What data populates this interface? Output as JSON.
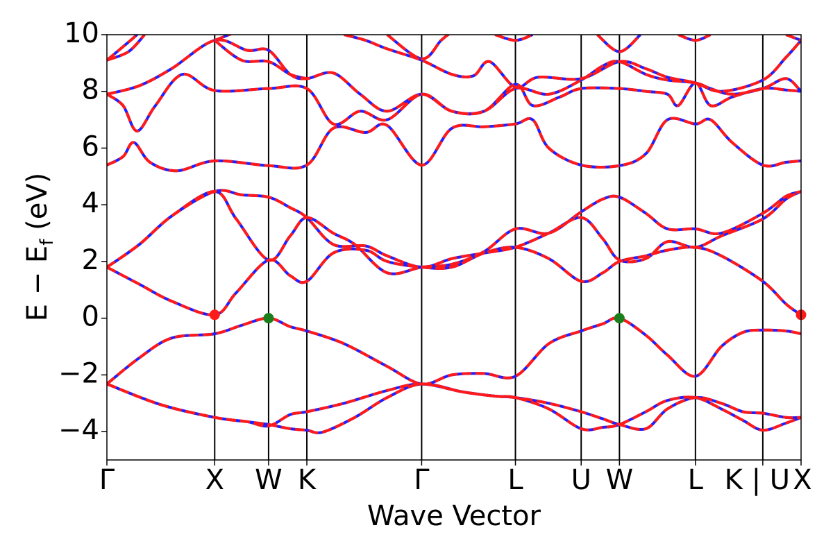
{
  "chart_data": {
    "type": "line",
    "title": "",
    "xlabel": "Wave Vector",
    "ylabel_main": "E − E",
    "ylabel_sub": "f",
    "ylabel_unit": " (eV)",
    "ylim": [
      -5,
      10
    ],
    "yticks": [
      -4,
      -2,
      0,
      2,
      4,
      6,
      8,
      10
    ],
    "ytick_labels": [
      "−4",
      "−2",
      "0",
      "2",
      "4",
      "6",
      "8",
      "10"
    ],
    "xlim": [
      0,
      6.44
    ],
    "kpoints": [
      {
        "label": "Γ",
        "x": 0.0
      },
      {
        "label": "X",
        "x": 1.0
      },
      {
        "label": "W",
        "x": 1.5
      },
      {
        "label": "K",
        "x": 1.855
      },
      {
        "label": "Γ",
        "x": 2.92
      },
      {
        "label": "L",
        "x": 3.79
      },
      {
        "label": "U",
        "x": 4.4
      },
      {
        "label": "W",
        "x": 4.755
      },
      {
        "label": "L",
        "x": 5.46
      },
      {
        "label": "K | U",
        "x": 6.085
      },
      {
        "label": "X",
        "x": 6.44
      }
    ],
    "colors": {
      "primary": "#1f1fff",
      "overlay": "#ff1a1a",
      "vbm": "#1a7f1a",
      "cbm": "#ff1a1a"
    },
    "series": [
      {
        "color": "blue",
        "style": "solid",
        "bands": "B"
      },
      {
        "color": "red",
        "style": "dashed",
        "bands": "B"
      }
    ],
    "markers": [
      {
        "kind": "cbm",
        "x": 1.0,
        "y": 0.12
      },
      {
        "kind": "cbm",
        "x": 6.44,
        "y": 0.12
      },
      {
        "kind": "vbm",
        "x": 1.5,
        "y": 0.0
      },
      {
        "kind": "vbm",
        "x": 4.755,
        "y": 0.0
      }
    ],
    "bands": [
      [
        [
          0,
          -2.32
        ],
        [
          0.5,
          -3.05
        ],
        [
          1.0,
          -3.5
        ],
        [
          1.3,
          -3.65
        ],
        [
          1.5,
          -3.75
        ],
        [
          1.7,
          -3.9
        ],
        [
          1.855,
          -3.95
        ],
        [
          2.0,
          -4.02
        ],
        [
          2.3,
          -3.5
        ],
        [
          2.6,
          -2.8
        ],
        [
          2.92,
          -2.32
        ],
        [
          3.3,
          -2.6
        ],
        [
          3.6,
          -2.75
        ],
        [
          3.79,
          -2.8
        ],
        [
          4.1,
          -3.2
        ],
        [
          4.4,
          -3.9
        ],
        [
          4.6,
          -3.85
        ],
        [
          4.755,
          -3.75
        ],
        [
          5.0,
          -3.3
        ],
        [
          5.2,
          -2.9
        ],
        [
          5.46,
          -2.8
        ],
        [
          5.7,
          -3.2
        ],
        [
          5.9,
          -3.6
        ],
        [
          6.085,
          -3.95
        ],
        [
          6.3,
          -3.7
        ],
        [
          6.44,
          -3.5
        ]
      ],
      [
        [
          0,
          -2.32
        ],
        [
          0.5,
          -3.05
        ],
        [
          1.0,
          -3.5
        ],
        [
          1.3,
          -3.65
        ],
        [
          1.5,
          -3.8
        ],
        [
          1.7,
          -3.4
        ],
        [
          1.855,
          -3.3
        ],
        [
          2.2,
          -3.0
        ],
        [
          2.6,
          -2.55
        ],
        [
          2.92,
          -2.32
        ],
        [
          3.3,
          -2.6
        ],
        [
          3.6,
          -2.75
        ],
        [
          3.79,
          -2.8
        ],
        [
          4.1,
          -3.0
        ],
        [
          4.4,
          -3.3
        ],
        [
          4.6,
          -3.55
        ],
        [
          4.755,
          -3.75
        ],
        [
          5.0,
          -3.9
        ],
        [
          5.2,
          -3.2
        ],
        [
          5.46,
          -2.8
        ],
        [
          5.7,
          -3.0
        ],
        [
          5.9,
          -3.3
        ],
        [
          6.085,
          -3.35
        ],
        [
          6.3,
          -3.5
        ],
        [
          6.44,
          -3.5
        ]
      ],
      [
        [
          0,
          -2.32
        ],
        [
          0.3,
          -1.4
        ],
        [
          0.6,
          -0.7
        ],
        [
          1.0,
          -0.55
        ],
        [
          1.25,
          -0.25
        ],
        [
          1.5,
          0.0
        ],
        [
          1.7,
          -0.3
        ],
        [
          1.855,
          -0.45
        ],
        [
          2.2,
          -0.9
        ],
        [
          2.6,
          -1.7
        ],
        [
          2.92,
          -2.32
        ],
        [
          3.2,
          -2.0
        ],
        [
          3.5,
          -1.95
        ],
        [
          3.79,
          -2.05
        ],
        [
          4.1,
          -0.9
        ],
        [
          4.4,
          -0.45
        ],
        [
          4.6,
          -0.2
        ],
        [
          4.755,
          0.0
        ],
        [
          5.0,
          -0.6
        ],
        [
          5.2,
          -1.3
        ],
        [
          5.46,
          -2.05
        ],
        [
          5.7,
          -1.0
        ],
        [
          5.9,
          -0.5
        ],
        [
          6.085,
          -0.42
        ],
        [
          6.3,
          -0.45
        ],
        [
          6.44,
          -0.55
        ]
      ],
      [
        [
          0,
          1.8
        ],
        [
          0.3,
          1.2
        ],
        [
          0.6,
          0.6
        ],
        [
          1.0,
          0.12
        ],
        [
          1.2,
          0.9
        ],
        [
          1.5,
          2.05
        ],
        [
          1.7,
          1.5
        ],
        [
          1.855,
          1.3
        ],
        [
          2.1,
          2.3
        ],
        [
          2.4,
          2.4
        ],
        [
          2.6,
          2.0
        ],
        [
          2.92,
          1.8
        ],
        [
          3.2,
          1.8
        ],
        [
          3.5,
          2.3
        ],
        [
          3.79,
          2.5
        ],
        [
          4.1,
          2.1
        ],
        [
          4.4,
          1.3
        ],
        [
          4.6,
          1.6
        ],
        [
          4.755,
          2.0
        ],
        [
          5.0,
          2.2
        ],
        [
          5.2,
          2.4
        ],
        [
          5.46,
          2.5
        ],
        [
          5.7,
          2.2
        ],
        [
          6.085,
          1.3
        ],
        [
          6.3,
          0.5
        ],
        [
          6.44,
          0.12
        ]
      ],
      [
        [
          0,
          1.8
        ],
        [
          0.3,
          2.6
        ],
        [
          0.6,
          3.6
        ],
        [
          1.0,
          4.47
        ],
        [
          1.25,
          4.35
        ],
        [
          1.5,
          4.27
        ],
        [
          1.7,
          3.9
        ],
        [
          1.855,
          3.55
        ],
        [
          2.1,
          2.6
        ],
        [
          2.4,
          2.55
        ],
        [
          2.6,
          2.2
        ],
        [
          2.92,
          1.8
        ],
        [
          3.2,
          2.1
        ],
        [
          3.5,
          2.3
        ],
        [
          3.79,
          2.5
        ],
        [
          4.1,
          3.0
        ],
        [
          4.4,
          3.55
        ],
        [
          4.6,
          2.8
        ],
        [
          4.755,
          2.05
        ],
        [
          5.0,
          2.1
        ],
        [
          5.2,
          2.7
        ],
        [
          5.46,
          2.5
        ],
        [
          5.7,
          2.9
        ],
        [
          6.085,
          3.5
        ],
        [
          6.3,
          4.2
        ],
        [
          6.44,
          4.47
        ]
      ],
      [
        [
          0,
          1.8
        ],
        [
          0.3,
          2.6
        ],
        [
          0.6,
          3.6
        ],
        [
          1.0,
          4.47
        ],
        [
          1.2,
          3.5
        ],
        [
          1.5,
          2.05
        ],
        [
          1.7,
          2.9
        ],
        [
          1.855,
          3.55
        ],
        [
          2.1,
          3.0
        ],
        [
          2.3,
          2.6
        ],
        [
          2.6,
          1.6
        ],
        [
          2.92,
          1.8
        ],
        [
          3.2,
          1.9
        ],
        [
          3.5,
          2.35
        ],
        [
          3.79,
          3.15
        ],
        [
          4.1,
          3.0
        ],
        [
          4.4,
          3.75
        ],
        [
          4.6,
          4.2
        ],
        [
          4.755,
          4.27
        ],
        [
          5.0,
          3.7
        ],
        [
          5.2,
          3.15
        ],
        [
          5.46,
          3.15
        ],
        [
          5.7,
          3.0
        ],
        [
          6.085,
          3.7
        ],
        [
          6.3,
          4.3
        ],
        [
          6.44,
          4.47
        ]
      ],
      [
        [
          0,
          5.4
        ],
        [
          0.15,
          5.7
        ],
        [
          0.25,
          6.2
        ],
        [
          0.4,
          5.5
        ],
        [
          0.65,
          5.2
        ],
        [
          1.0,
          5.55
        ],
        [
          1.5,
          5.38
        ],
        [
          1.855,
          5.4
        ],
        [
          2.1,
          6.7
        ],
        [
          2.4,
          6.55
        ],
        [
          2.6,
          6.8
        ],
        [
          2.92,
          5.4
        ],
        [
          3.2,
          6.7
        ],
        [
          3.5,
          6.75
        ],
        [
          3.79,
          6.85
        ],
        [
          3.95,
          7.0
        ],
        [
          4.1,
          6.0
        ],
        [
          4.4,
          5.4
        ],
        [
          4.755,
          5.38
        ],
        [
          5.0,
          5.8
        ],
        [
          5.2,
          7.0
        ],
        [
          5.46,
          6.85
        ],
        [
          5.6,
          7.0
        ],
        [
          5.8,
          6.2
        ],
        [
          6.085,
          5.4
        ],
        [
          6.3,
          5.5
        ],
        [
          6.44,
          5.55
        ]
      ],
      [
        [
          0,
          7.9
        ],
        [
          0.15,
          7.5
        ],
        [
          0.28,
          6.6
        ],
        [
          0.45,
          7.5
        ],
        [
          0.7,
          8.6
        ],
        [
          1.0,
          8.03
        ],
        [
          1.5,
          8.1
        ],
        [
          1.855,
          8.1
        ],
        [
          2.1,
          6.85
        ],
        [
          2.35,
          7.3
        ],
        [
          2.6,
          7.0
        ],
        [
          2.92,
          7.9
        ],
        [
          3.2,
          7.3
        ],
        [
          3.5,
          7.3
        ],
        [
          3.79,
          8.25
        ],
        [
          3.95,
          7.5
        ],
        [
          4.2,
          7.8
        ],
        [
          4.4,
          8.1
        ],
        [
          4.755,
          8.1
        ],
        [
          5.0,
          8.0
        ],
        [
          5.2,
          7.9
        ],
        [
          5.3,
          7.5
        ],
        [
          5.46,
          8.3
        ],
        [
          5.6,
          7.5
        ],
        [
          5.8,
          7.8
        ],
        [
          6.085,
          8.1
        ],
        [
          6.3,
          8.05
        ],
        [
          6.44,
          8.0
        ]
      ],
      [
        [
          0,
          7.9
        ],
        [
          0.3,
          8.2
        ],
        [
          0.6,
          8.8
        ],
        [
          1.0,
          9.8
        ],
        [
          1.3,
          9.45
        ],
        [
          1.5,
          9.45
        ],
        [
          1.7,
          8.6
        ],
        [
          1.855,
          8.45
        ],
        [
          2.1,
          8.65
        ],
        [
          2.35,
          7.9
        ],
        [
          2.6,
          7.3
        ],
        [
          2.92,
          7.9
        ],
        [
          3.2,
          7.3
        ],
        [
          3.5,
          7.3
        ],
        [
          3.79,
          8.1
        ],
        [
          4.1,
          7.9
        ],
        [
          4.4,
          8.4
        ],
        [
          4.6,
          8.9
        ],
        [
          4.755,
          9.05
        ],
        [
          5.0,
          8.6
        ],
        [
          5.2,
          8.4
        ],
        [
          5.46,
          8.3
        ],
        [
          5.6,
          8.1
        ],
        [
          5.8,
          7.9
        ],
        [
          6.085,
          8.1
        ],
        [
          6.3,
          8.45
        ],
        [
          6.44,
          8.0
        ]
      ],
      [
        [
          0,
          9.1
        ],
        [
          0.2,
          9.4
        ],
        [
          0.35,
          10.0
        ]
      ],
      [
        [
          0,
          9.1
        ],
        [
          0.25,
          9.9
        ],
        [
          0.3,
          10.1
        ]
      ],
      [
        [
          1.0,
          9.8
        ],
        [
          1.25,
          9.1
        ],
        [
          1.5,
          9.05
        ],
        [
          1.7,
          8.6
        ],
        [
          1.855,
          8.45
        ]
      ],
      [
        [
          1.0,
          9.8
        ],
        [
          1.2,
          10.1
        ]
      ],
      [
        [
          2.2,
          10.0
        ],
        [
          2.4,
          9.8
        ],
        [
          2.6,
          9.5
        ],
        [
          2.92,
          9.1
        ],
        [
          3.2,
          8.6
        ],
        [
          3.4,
          8.55
        ],
        [
          3.55,
          9.05
        ],
        [
          3.79,
          8.15
        ],
        [
          4.0,
          8.5
        ],
        [
          4.4,
          8.45
        ],
        [
          4.755,
          9.05
        ],
        [
          5.0,
          8.8
        ],
        [
          5.2,
          8.5
        ],
        [
          5.46,
          8.3
        ],
        [
          5.7,
          8.0
        ],
        [
          6.085,
          8.4
        ],
        [
          6.3,
          9.2
        ],
        [
          6.44,
          9.8
        ]
      ],
      [
        [
          2.6,
          10.0
        ],
        [
          2.92,
          9.15
        ],
        [
          3.1,
          9.8
        ],
        [
          3.2,
          10.1
        ]
      ],
      [
        [
          3.6,
          10.0
        ],
        [
          3.79,
          9.8
        ],
        [
          3.95,
          10.0
        ]
      ],
      [
        [
          4.55,
          10.0
        ],
        [
          4.755,
          9.4
        ],
        [
          4.95,
          10.0
        ]
      ],
      [
        [
          5.3,
          10.0
        ],
        [
          5.46,
          9.8
        ],
        [
          5.6,
          10.0
        ]
      ],
      [
        [
          6.3,
          10.0
        ],
        [
          6.44,
          9.8
        ]
      ]
    ]
  }
}
